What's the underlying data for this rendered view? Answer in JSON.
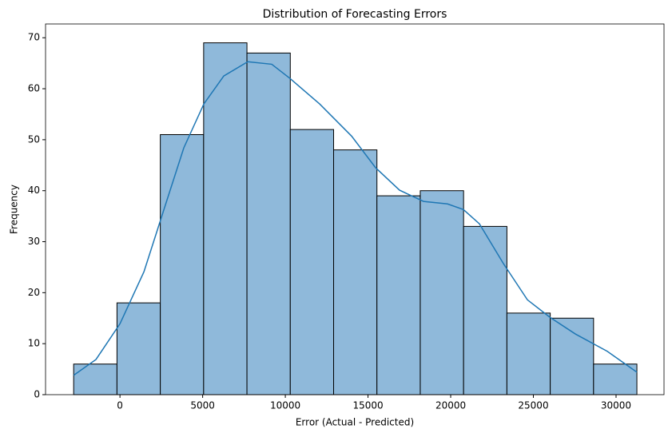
{
  "chart_data": {
    "type": "histogram",
    "title": "Distribution of Forecasting Errors",
    "x_label": "Error (Actual - Predicted)",
    "y_label": "Frequency",
    "bins": [
      -2800,
      -180,
      2440,
      5060,
      7680,
      10300,
      12920,
      15540,
      18160,
      20780,
      23400,
      26020,
      28640,
      31260
    ],
    "values": [
      6,
      18,
      51,
      69,
      67,
      52,
      48,
      39,
      40,
      33,
      16,
      15,
      6
    ],
    "color": "#8fb9da",
    "edge_color": "#000000",
    "kde": {
      "color": "#1f77b4",
      "x": [
        -2800,
        -1450,
        0,
        1450,
        2460,
        3860,
        5070,
        6280,
        7730,
        9180,
        10290,
        12080,
        14010,
        15460,
        16910,
        18360,
        19810,
        20770,
        21740,
        23190,
        24640,
        25990,
        27540,
        29470,
        31260
      ],
      "y": [
        3.8,
        6.9,
        13.9,
        24.1,
        34.3,
        48.4,
        57.0,
        62.5,
        65.3,
        64.8,
        62.0,
        57.0,
        50.7,
        44.5,
        40.1,
        37.9,
        37.4,
        36.3,
        33.5,
        25.7,
        18.6,
        15.2,
        11.9,
        8.5,
        4.4
      ]
    },
    "xlim": [
      -4500,
      32900
    ],
    "ylim": [
      0,
      72.7
    ],
    "xticks": [
      0,
      5000,
      10000,
      15000,
      20000,
      25000,
      30000
    ],
    "yticks": [
      0,
      10,
      20,
      30,
      40,
      50,
      60,
      70
    ],
    "grid": false
  }
}
